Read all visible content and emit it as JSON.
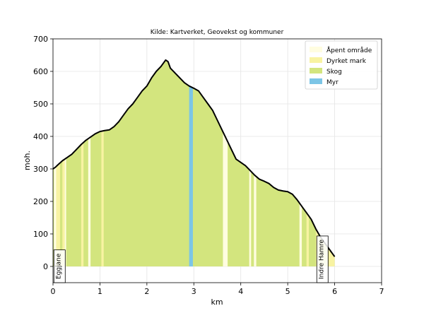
{
  "chart_data": {
    "type": "area",
    "title": "Kilde: Kartverket, Geovekst og kommuner",
    "xlabel": "km",
    "ylabel": "moh.",
    "xlim": [
      0,
      7
    ],
    "ylim": [
      -50,
      700
    ],
    "xticks": [
      0,
      1,
      2,
      3,
      4,
      5,
      6,
      7
    ],
    "yticks": [
      0,
      100,
      200,
      300,
      400,
      500,
      600,
      700
    ],
    "grid": true,
    "legend_position": "top-right",
    "series": [
      {
        "name": "Åpent område",
        "color": "#fffde0"
      },
      {
        "name": "Dyrket mark",
        "color": "#f8f3a2"
      },
      {
        "name": "Skog",
        "color": "#d3e57e"
      },
      {
        "name": "Myr",
        "color": "#7cc5e6"
      }
    ],
    "profile": {
      "x": [
        0,
        0.05,
        0.1,
        0.2,
        0.3,
        0.4,
        0.5,
        0.6,
        0.7,
        0.8,
        0.9,
        1.0,
        1.1,
        1.2,
        1.3,
        1.4,
        1.5,
        1.6,
        1.7,
        1.8,
        1.9,
        2.0,
        2.1,
        2.2,
        2.3,
        2.4,
        2.45,
        2.5,
        2.6,
        2.7,
        2.8,
        2.9,
        3.0,
        3.1,
        3.2,
        3.3,
        3.4,
        3.5,
        3.6,
        3.7,
        3.8,
        3.9,
        4.0,
        4.1,
        4.2,
        4.3,
        4.4,
        4.5,
        4.6,
        4.7,
        4.8,
        4.9,
        5.0,
        5.1,
        5.2,
        5.3,
        5.4,
        5.5,
        5.6,
        5.7,
        5.8,
        5.9,
        6.0
      ],
      "y": [
        300,
        305,
        312,
        325,
        335,
        345,
        360,
        375,
        388,
        398,
        408,
        415,
        418,
        420,
        430,
        445,
        465,
        485,
        500,
        520,
        540,
        555,
        580,
        600,
        615,
        635,
        630,
        610,
        595,
        580,
        565,
        555,
        548,
        540,
        520,
        500,
        480,
        450,
        420,
        390,
        360,
        330,
        320,
        310,
        295,
        280,
        268,
        262,
        255,
        243,
        235,
        232,
        230,
        222,
        205,
        185,
        165,
        145,
        115,
        90,
        70,
        50,
        30
      ]
    },
    "segments": [
      {
        "from": 0.02,
        "to": 0.07,
        "type": "Åpent område"
      },
      {
        "from": 0.07,
        "to": 0.15,
        "type": "Dyrket mark"
      },
      {
        "from": 0.2,
        "to": 0.25,
        "type": "Dyrket mark"
      },
      {
        "from": 0.25,
        "to": 0.28,
        "type": "Åpent område"
      },
      {
        "from": 0.6,
        "to": 0.65,
        "type": "Dyrket mark"
      },
      {
        "from": 0.75,
        "to": 0.8,
        "type": "Åpent område"
      },
      {
        "from": 1.03,
        "to": 1.08,
        "type": "Dyrket mark"
      },
      {
        "from": 2.9,
        "to": 2.98,
        "type": "Myr"
      },
      {
        "from": 3.62,
        "to": 3.72,
        "type": "Åpent område"
      },
      {
        "from": 4.18,
        "to": 4.22,
        "type": "Åpent område"
      },
      {
        "from": 4.28,
        "to": 4.33,
        "type": "Åpent område"
      },
      {
        "from": 5.25,
        "to": 5.3,
        "type": "Åpent område"
      },
      {
        "from": 5.4,
        "to": 5.45,
        "type": "Dyrket mark"
      },
      {
        "from": 5.6,
        "to": 5.65,
        "type": "Dyrket mark"
      },
      {
        "from": 5.7,
        "to": 5.78,
        "type": "Dyrket mark"
      },
      {
        "from": 5.8,
        "to": 6.0,
        "type": "Dyrket mark"
      }
    ],
    "annotations": [
      {
        "text": "Eggjane",
        "x": 0.2
      },
      {
        "text": "Indre Hamre",
        "x": 5.8
      }
    ]
  }
}
